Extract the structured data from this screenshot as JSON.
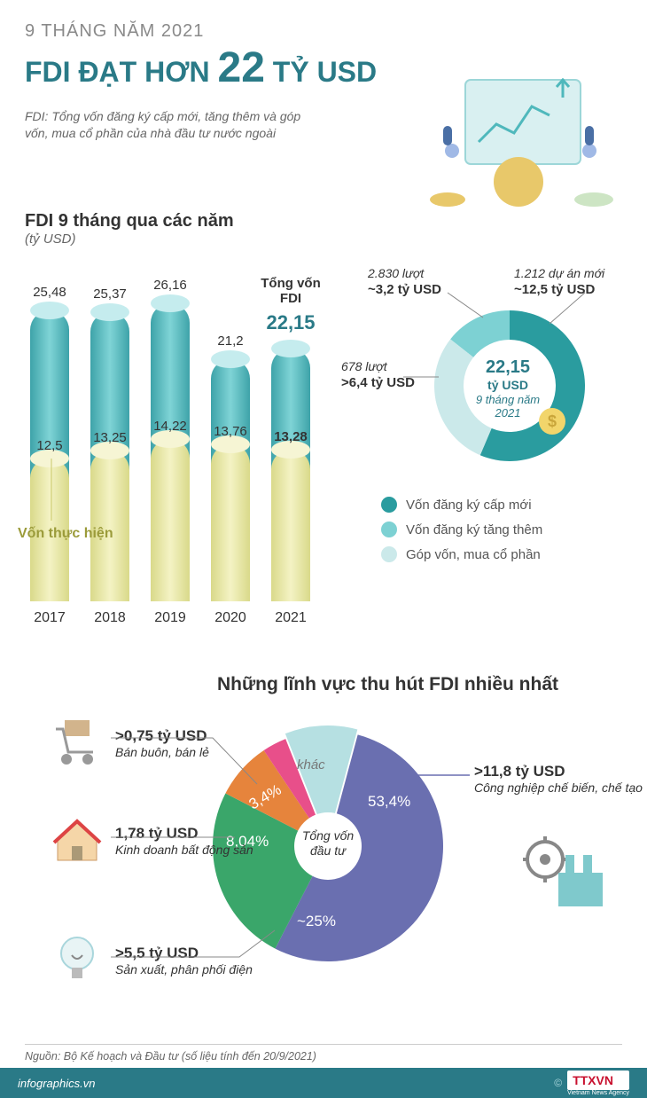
{
  "header": {
    "subtitle": "9 THÁNG NĂM 2021",
    "title_pre": "FDI ĐẠT HƠN ",
    "title_big": "22",
    "title_post": " TỶ USD",
    "description": "FDI: Tổng vốn đăng ký cấp mới, tăng thêm và góp vốn, mua cổ phần của nhà đầu tư nước ngoài",
    "title_color": "#2a7a87"
  },
  "bar_chart": {
    "title": "FDI 9 tháng qua các năm",
    "unit": "(tỷ USD)",
    "total_label": "Tổng vốn FDI",
    "total_value": "22,15",
    "total_value_num": 22.15,
    "realized_label": "Vốn thực hiện",
    "ylim_max": 28,
    "outer_color": "#5bbcc0",
    "inner_color": "#e8e7a8",
    "bars": [
      {
        "year": "2017",
        "total": 25.48,
        "total_lbl": "25,48",
        "realized": 12.5,
        "realized_lbl": "12,5"
      },
      {
        "year": "2018",
        "total": 25.37,
        "total_lbl": "25,37",
        "realized": 13.25,
        "realized_lbl": "13,25"
      },
      {
        "year": "2019",
        "total": 26.16,
        "total_lbl": "26,16",
        "realized": 14.22,
        "realized_lbl": "14,22"
      },
      {
        "year": "2020",
        "total": 21.2,
        "total_lbl": "21,2",
        "realized": 13.76,
        "realized_lbl": "13,76"
      },
      {
        "year": "2021",
        "total": 22.15,
        "total_lbl": "22,15",
        "realized": 13.28,
        "realized_lbl": "13,28",
        "highlight": true
      }
    ]
  },
  "donut": {
    "center_value": "22,15",
    "center_unit": "tỷ USD",
    "center_sub": "9 tháng năm 2021",
    "segments": [
      {
        "key": "new",
        "pct": 56.4,
        "color": "#2a9c9f",
        "label_top": "1.212 dự án mới",
        "label_val": "~12,5 tỷ USD"
      },
      {
        "key": "add",
        "pct": 14.4,
        "color": "#7dd1d3",
        "label_top": "2.830 lượt",
        "label_val": "~3,2 tỷ USD"
      },
      {
        "key": "buy",
        "pct": 29.2,
        "color": "#cbe9ea",
        "label_top": "678 lượt",
        "label_val": ">6,4 tỷ USD"
      }
    ],
    "legend": [
      {
        "color": "#2a9c9f",
        "label": "Vốn đăng ký cấp mới"
      },
      {
        "color": "#7dd1d3",
        "label": "Vốn đăng ký tăng thêm"
      },
      {
        "color": "#cbe9ea",
        "label": "Góp vốn, mua cổ phần"
      }
    ]
  },
  "pie": {
    "title": "Những lĩnh vực thu hút FDI nhiều nhất",
    "center": "Tổng vốn đầu tư",
    "sectors": [
      {
        "pct": 53.4,
        "pct_lbl": "53,4%",
        "color": "#6a6fb0",
        "value": ">11,8 tỷ USD",
        "label": "Công nghiệp chế biến, chế tạo",
        "icon": "factory"
      },
      {
        "pct": 25,
        "pct_lbl": "~25%",
        "color": "#3aa66a",
        "value": ">5,5 tỷ USD",
        "label": "Sản xuất, phân phối điện",
        "icon": "bulb"
      },
      {
        "pct": 8.04,
        "pct_lbl": "8,04%",
        "color": "#e6843c",
        "value": "1,78 tỷ USD",
        "label": "Kinh doanh bất động sản",
        "icon": "house"
      },
      {
        "pct": 3.4,
        "pct_lbl": "3,4%",
        "color": "#e84f8a",
        "value": ">0,75 tỷ USD",
        "label": "Bán buôn, bán lẻ",
        "icon": "cart"
      },
      {
        "pct": 10.16,
        "pct_lbl": "khác",
        "color": "#b6e0e2",
        "value": "",
        "label": "",
        "icon": ""
      }
    ]
  },
  "footer": {
    "source": "Nguồn: Bộ Kế hoạch và Đầu tư (số liệu tính đến 20/9/2021)",
    "url": "infographics.vn",
    "copyright": "©",
    "logo": "TTXVN",
    "logo_sub": "Vietnam News Agency"
  }
}
